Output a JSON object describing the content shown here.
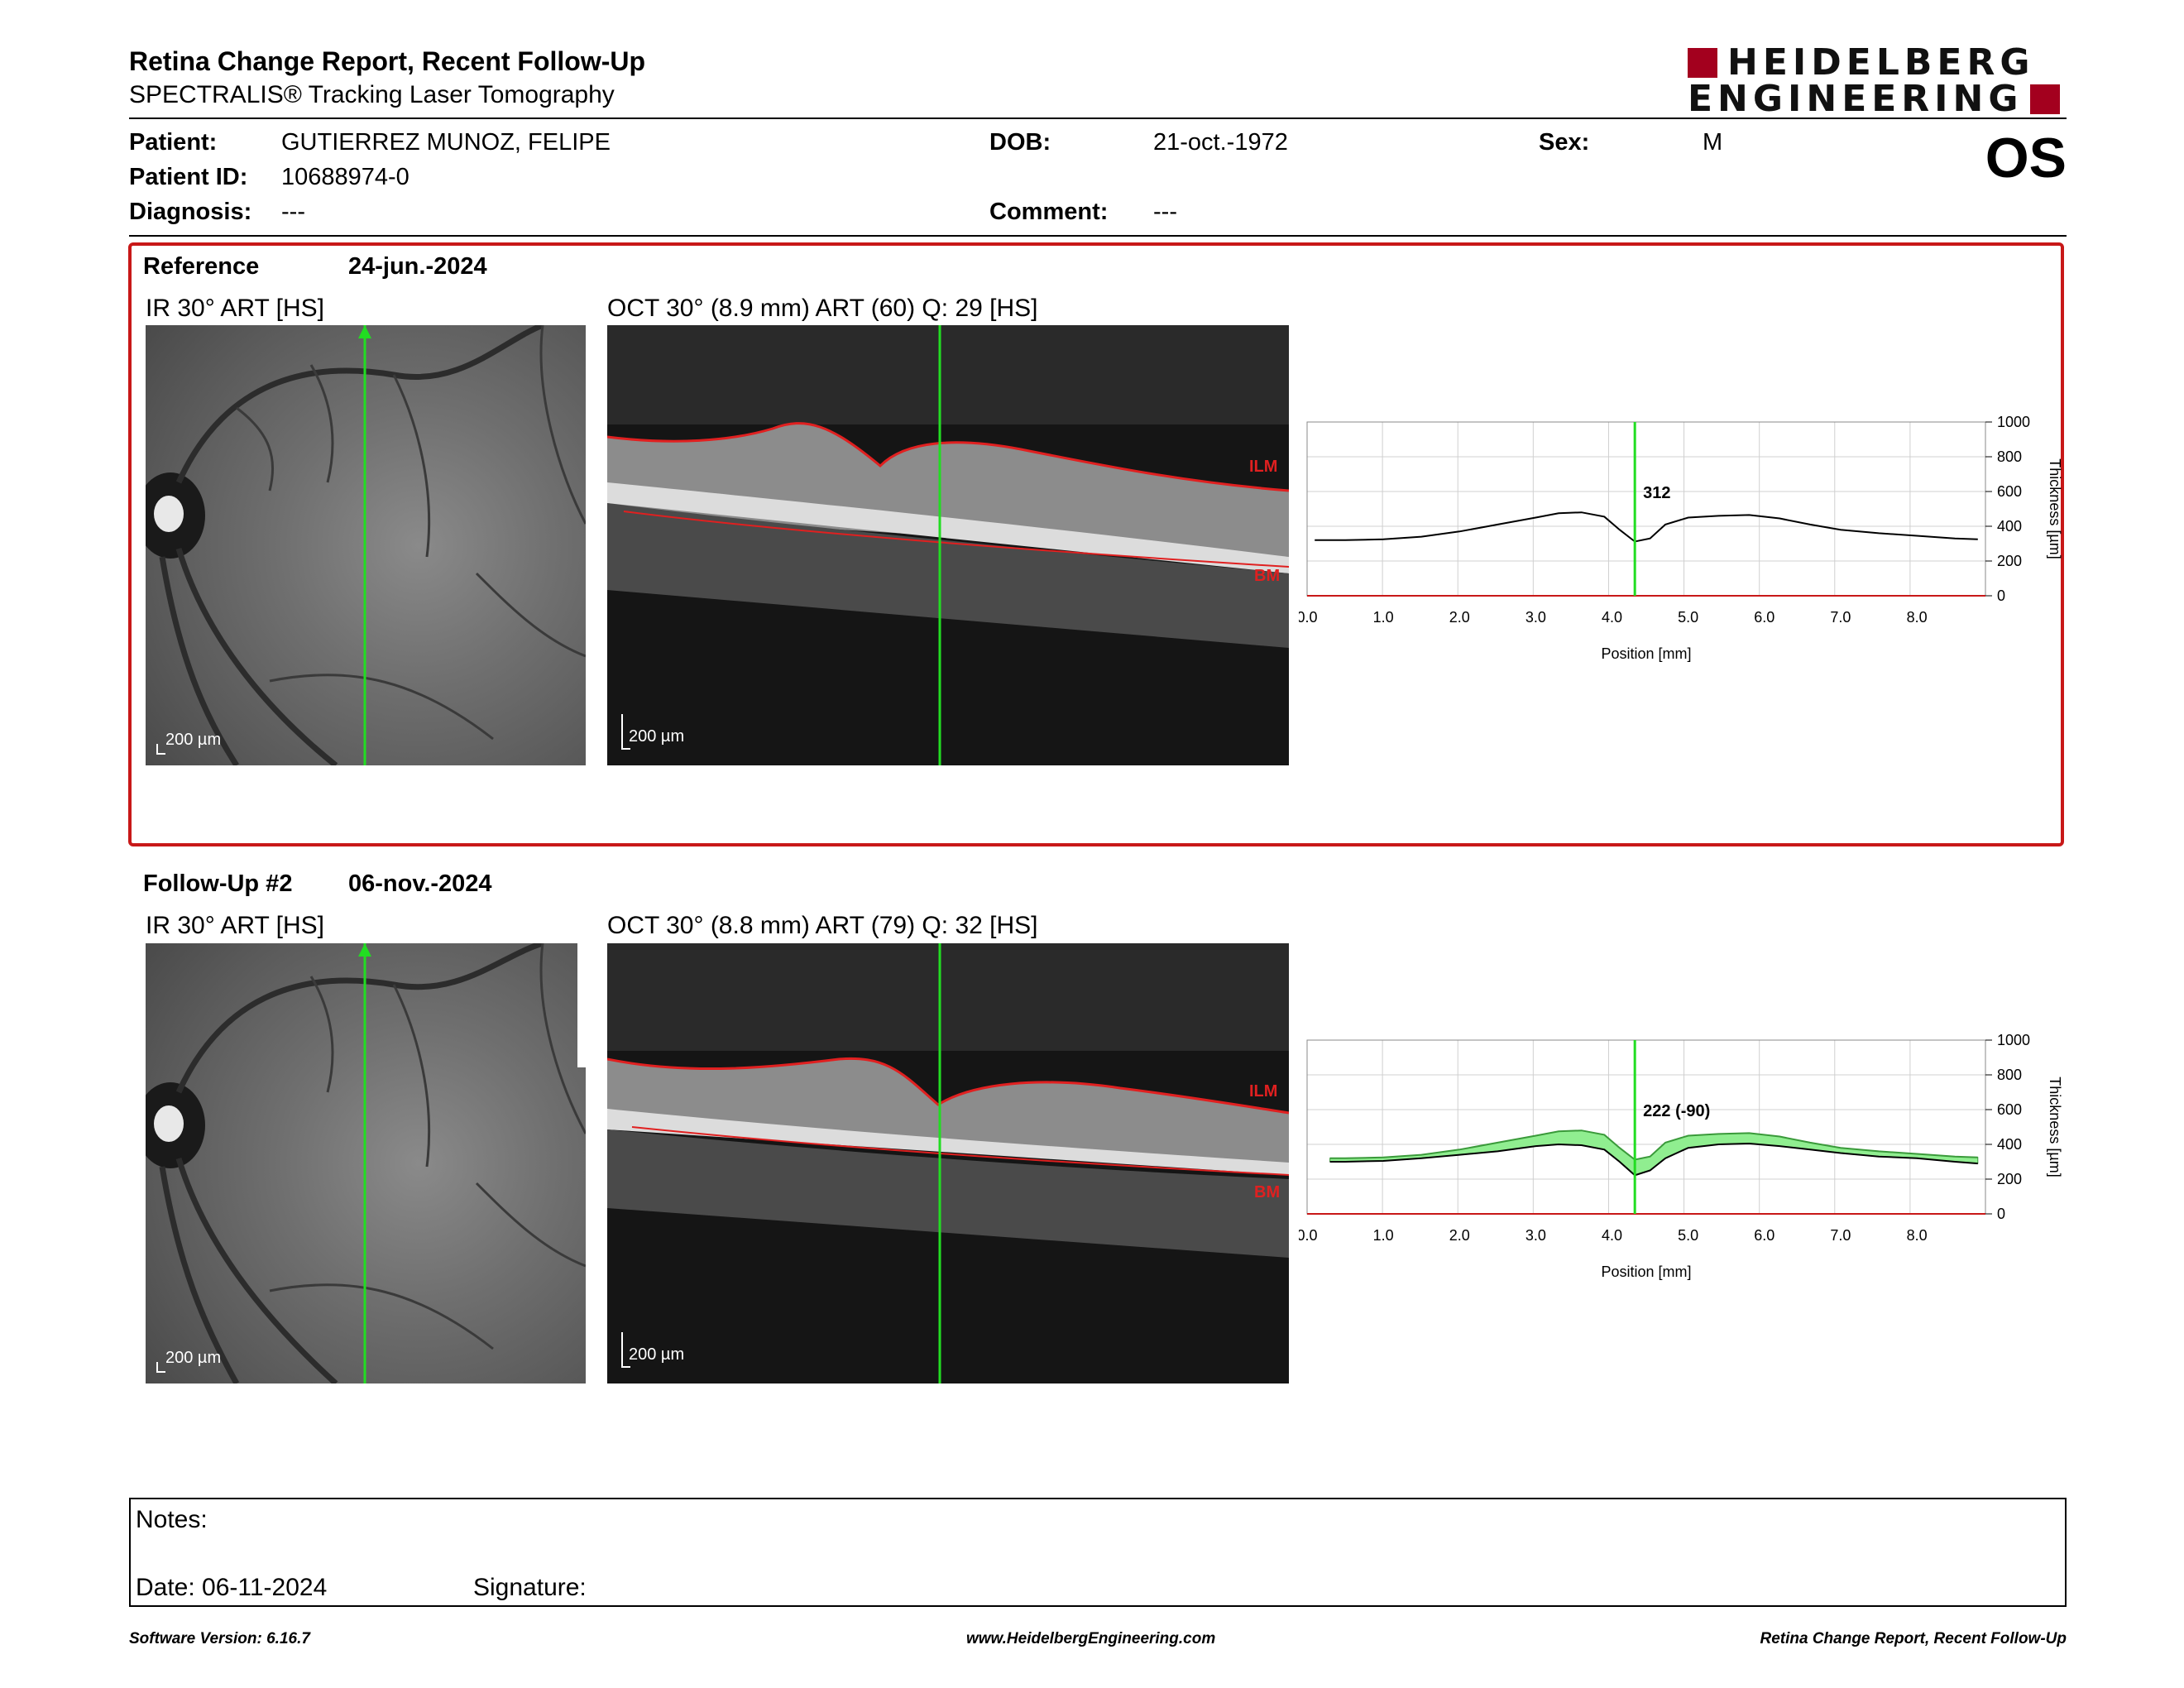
{
  "header": {
    "title": "Retina Change Report, Recent Follow-Up",
    "subtitle": "SPECTRALIS® Tracking Laser Tomography",
    "logo_line1": "HEIDELBERG",
    "logo_line2": "ENGINEERING",
    "eye": "OS"
  },
  "patient": {
    "patient_label": "Patient:",
    "patient_value": "GUTIERREZ MUNOZ, FELIPE",
    "id_label": "Patient ID:",
    "id_value": "10688974-0",
    "diagnosis_label": "Diagnosis:",
    "diagnosis_value": "---",
    "dob_label": "DOB:",
    "dob_value": "21-oct.-1972",
    "comment_label": "Comment:",
    "comment_value": "---",
    "sex_label": "Sex:",
    "sex_value": "M"
  },
  "reference": {
    "label": "Reference",
    "date": "24-jun.-2024",
    "ir_label": "IR 30° ART [HS]",
    "oct_label": "OCT 30° (8.9 mm) ART (60) Q: 29 [HS]",
    "scale": "200 µm",
    "ilm": "ILM",
    "bm": "BM"
  },
  "followup": {
    "label": "Follow-Up #2",
    "date": "06-nov.-2024",
    "ir_label": "IR 30° ART [HS]",
    "oct_label": "OCT 30° (8.8 mm) ART (79) Q: 32 [HS]",
    "scale": "200 µm",
    "ilm": "ILM",
    "bm": "BM"
  },
  "chart_data": [
    {
      "type": "line",
      "xlabel": "Position [mm]",
      "ylabel": "Thickness [µm]",
      "xlim": [
        0,
        8.9
      ],
      "ylim": [
        0,
        1000
      ],
      "xticks": [
        "0.0",
        "1.0",
        "2.0",
        "3.0",
        "4.0",
        "5.0",
        "6.0",
        "7.0",
        "8.0"
      ],
      "yticks": [
        "0",
        "200",
        "400",
        "600",
        "800",
        "1000"
      ],
      "cursor_x": 4.3,
      "annotation": "312",
      "grid": true,
      "series": [
        {
          "x": [
            0.1,
            0.5,
            1.0,
            1.5,
            2.0,
            2.5,
            3.0,
            3.3,
            3.6,
            3.9,
            4.1,
            4.3,
            4.5,
            4.7,
            5.0,
            5.4,
            5.8,
            6.2,
            6.6,
            7.0,
            7.5,
            8.0,
            8.5,
            8.8
          ],
          "values": [
            320,
            320,
            325,
            340,
            370,
            410,
            450,
            475,
            480,
            455,
            380,
            312,
            330,
            410,
            450,
            460,
            465,
            445,
            410,
            380,
            360,
            345,
            330,
            325
          ]
        }
      ]
    },
    {
      "type": "area",
      "xlabel": "Position [mm]",
      "ylabel": "Thickness [µm]",
      "xlim": [
        0,
        8.9
      ],
      "ylim": [
        0,
        1000
      ],
      "xticks": [
        "0.0",
        "1.0",
        "2.0",
        "3.0",
        "4.0",
        "5.0",
        "6.0",
        "7.0",
        "8.0"
      ],
      "yticks": [
        "0",
        "200",
        "400",
        "600",
        "800",
        "1000"
      ],
      "cursor_x": 4.3,
      "annotation": "222 (-90)",
      "grid": true,
      "series": [
        {
          "x": [
            0.3,
            0.5,
            1.0,
            1.5,
            2.0,
            2.5,
            3.0,
            3.3,
            3.6,
            3.9,
            4.1,
            4.3,
            4.5,
            4.7,
            5.0,
            5.4,
            5.8,
            6.2,
            6.6,
            7.0,
            7.5,
            8.0,
            8.5,
            8.8
          ],
          "values": [
            300,
            300,
            305,
            320,
            340,
            360,
            390,
            400,
            395,
            370,
            300,
            222,
            250,
            320,
            380,
            400,
            405,
            390,
            370,
            350,
            330,
            320,
            300,
            290
          ]
        },
        {
          "x": [
            0.3,
            0.5,
            1.0,
            1.5,
            2.0,
            2.5,
            3.0,
            3.3,
            3.6,
            3.9,
            4.1,
            4.3,
            4.5,
            4.7,
            5.0,
            5.4,
            5.8,
            6.2,
            6.6,
            7.0,
            7.5,
            8.0,
            8.5,
            8.8
          ],
          "values": [
            320,
            320,
            325,
            340,
            370,
            410,
            450,
            475,
            480,
            455,
            380,
            312,
            330,
            410,
            450,
            460,
            465,
            445,
            410,
            380,
            360,
            345,
            330,
            325
          ]
        }
      ]
    }
  ],
  "notes": {
    "notes_label": "Notes:",
    "date_label": "Date: 06-11-2024",
    "signature_label": "Signature:"
  },
  "footer": {
    "left": "Software Version: 6.16.7",
    "center": "www.HeidelbergEngineering.com",
    "right": "Retina Change Report, Recent Follow-Up"
  },
  "colors": {
    "accent_red": "#c81818",
    "logo_red": "#a3001e",
    "cursor_green": "#22dd22",
    "diff_fill": "#90ee90"
  }
}
